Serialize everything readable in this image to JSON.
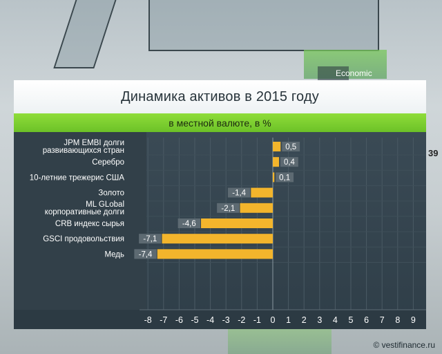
{
  "background": {
    "studio_text": "Economic",
    "side_number": "39"
  },
  "chart_data": {
    "type": "bar",
    "orientation": "horizontal",
    "title": "Динамика активов в 2015 году",
    "subtitle": "в местной валюте, в %",
    "categories": [
      [
        "JPM EMBI долги",
        "развивающихся стран"
      ],
      [
        "Серебро"
      ],
      [
        "10-летние трежерис США"
      ],
      [
        "Золото"
      ],
      [
        "ML GLobal",
        "корпоративные долги"
      ],
      [
        "CRB индекс сырья"
      ],
      [
        "GSCI продовольствия"
      ],
      [
        "Медь"
      ]
    ],
    "values": [
      0.5,
      0.4,
      0.1,
      -1.4,
      -2.1,
      -4.6,
      -7.1,
      -7.4
    ],
    "value_labels": [
      "0,5",
      "0,4",
      "0,1",
      "-1,4",
      "-2,1",
      "-4,6",
      "-7,1",
      "-7,4"
    ],
    "xlim": [
      -8,
      9
    ],
    "ticks": [
      -8,
      -7,
      -6,
      -5,
      -4,
      -3,
      -2,
      -1,
      0,
      1,
      2,
      3,
      4,
      5,
      6,
      7,
      8,
      9
    ],
    "grid": true,
    "colors": {
      "bar": "#f3b52c",
      "plot_bg": "#34444f",
      "label_box": "#5d6a72",
      "accent_green": "#7ccf2f"
    }
  },
  "credit": "© vestifinance.ru"
}
